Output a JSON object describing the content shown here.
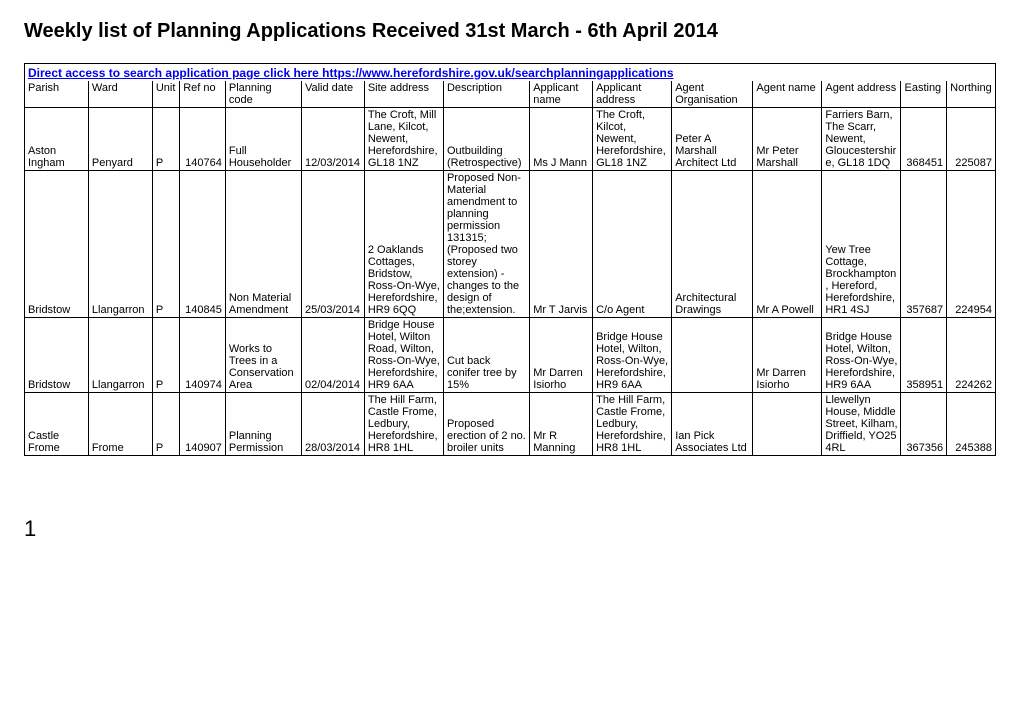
{
  "title": "Weekly list of Planning Applications Received 31st March - 6th April 2014",
  "search_link_text": "Direct access to search application page click here https://www.herefordshire.gov.uk/searchplanningapplications",
  "footer_page": "1",
  "columns": [
    "Parish",
    "Ward",
    "Unit",
    "Ref no",
    "Planning code",
    "Valid date",
    "Site address",
    "Description",
    "Applicant name",
    "Applicant address",
    "Agent Organisation",
    "Agent name",
    "Agent address",
    "Easting",
    "Northing"
  ],
  "rows": [
    {
      "parish": "Aston Ingham",
      "ward": "Penyard",
      "unit": "P",
      "refno": "140764",
      "code": "Full Householder",
      "valid": "12/03/2014",
      "siteaddr": "The Croft, Mill Lane, Kilcot, Newent, Herefordshire, GL18 1NZ",
      "desc": "Outbuilding (Retrospective)",
      "appname": "Ms J Mann",
      "appaddr": "The Croft, Kilcot, Newent, Herefordshire, GL18 1NZ",
      "agentorg": "Peter A Marshall Architect Ltd",
      "agentnm": "Mr Peter Marshall",
      "agentad": "Farriers Barn, The Scarr, Newent, Gloucestershire, GL18 1DQ",
      "easting": "368451",
      "northing": "225087"
    },
    {
      "parish": "Bridstow",
      "ward": "Llangarron",
      "unit": "P",
      "refno": "140845",
      "code": "Non Material Amendment",
      "valid": "25/03/2014",
      "siteaddr": "2 Oaklands Cottages, Bridstow, Ross-On-Wye, Herefordshire, HR9 6QQ",
      "desc": "Proposed Non-Material amendment to planning permission 131315;(Proposed two storey extension) - changes to the design of the;extension.",
      "appname": "Mr T Jarvis",
      "appaddr": "C/o Agent",
      "agentorg": "Architectural Drawings",
      "agentnm": "Mr A Powell",
      "agentad": "Yew Tree Cottage, Brockhampton, Hereford, Herefordshire, HR1 4SJ",
      "easting": "357687",
      "northing": "224954"
    },
    {
      "parish": "Bridstow",
      "ward": "Llangarron",
      "unit": "P",
      "refno": "140974",
      "code": "Works to Trees in a Conservation Area",
      "valid": "02/04/2014",
      "siteaddr": "Bridge House Hotel, Wilton Road, Wilton, Ross-On-Wye, Herefordshire, HR9 6AA",
      "desc": "Cut back conifer tree by 15%",
      "appname": "Mr Darren Isiorho",
      "appaddr": "Bridge House Hotel, Wilton, Ross-On-Wye, Herefordshire, HR9 6AA",
      "agentorg": "",
      "agentnm": "Mr Darren Isiorho",
      "agentad": "Bridge House Hotel, Wilton, Ross-On-Wye, Herefordshire, HR9 6AA",
      "easting": "358951",
      "northing": "224262"
    },
    {
      "parish": "Castle Frome",
      "ward": "Frome",
      "unit": "P",
      "refno": "140907",
      "code": "Planning Permission",
      "valid": "28/03/2014",
      "siteaddr": "The Hill Farm, Castle Frome, Ledbury, Herefordshire, HR8 1HL",
      "desc": "Proposed erection of 2 no. broiler units",
      "appname": "Mr R Manning",
      "appaddr": "The Hill Farm, Castle Frome, Ledbury, Herefordshire, HR8 1HL",
      "agentorg": "Ian Pick Associates Ltd",
      "agentnm": "",
      "agentad": "Llewellyn House, Middle Street, Kilham, Driffield, YO25 4RL",
      "easting": "367356",
      "northing": "245388"
    }
  ]
}
